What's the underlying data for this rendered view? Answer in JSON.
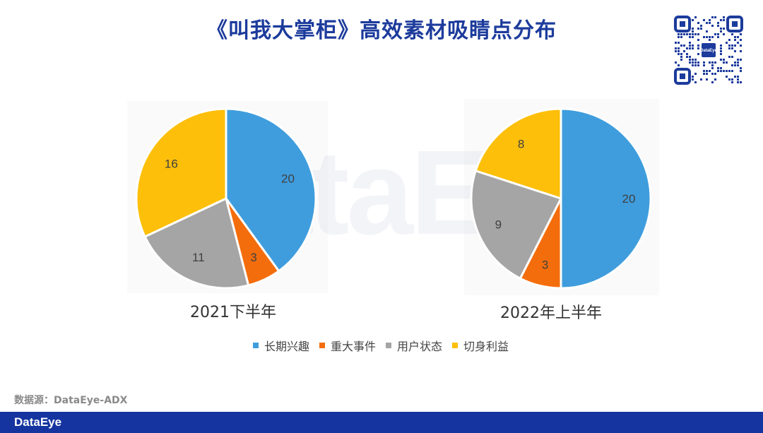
{
  "page": {
    "title": "《叫我大掌柜》高效素材吸睛点分布",
    "source": "数据源：DataEye-ADX",
    "footer_logo": "DataEye",
    "qr_logo": "DataEye",
    "watermark": "DataEye"
  },
  "colors": {
    "title": "#1c3b9c",
    "footer": "#1534a0",
    "slices": [
      "#3f9ddd",
      "#f46d0c",
      "#a5a5a5",
      "#fdbf0a"
    ]
  },
  "chart_data": [
    {
      "type": "pie",
      "title": "2021下半年",
      "categories": [
        "长期兴趣",
        "重大事件",
        "用户状态",
        "切身利益"
      ],
      "values": [
        20,
        3,
        11,
        16
      ],
      "legend": "bottom"
    },
    {
      "type": "pie",
      "title": "2022年上半年",
      "categories": [
        "长期兴趣",
        "重大事件",
        "用户状态",
        "切身利益"
      ],
      "values": [
        20,
        3,
        9,
        8
      ],
      "legend": "bottom"
    }
  ],
  "legend": {
    "items": [
      "长期兴趣",
      "重大事件",
      "用户状态",
      "切身利益"
    ]
  }
}
